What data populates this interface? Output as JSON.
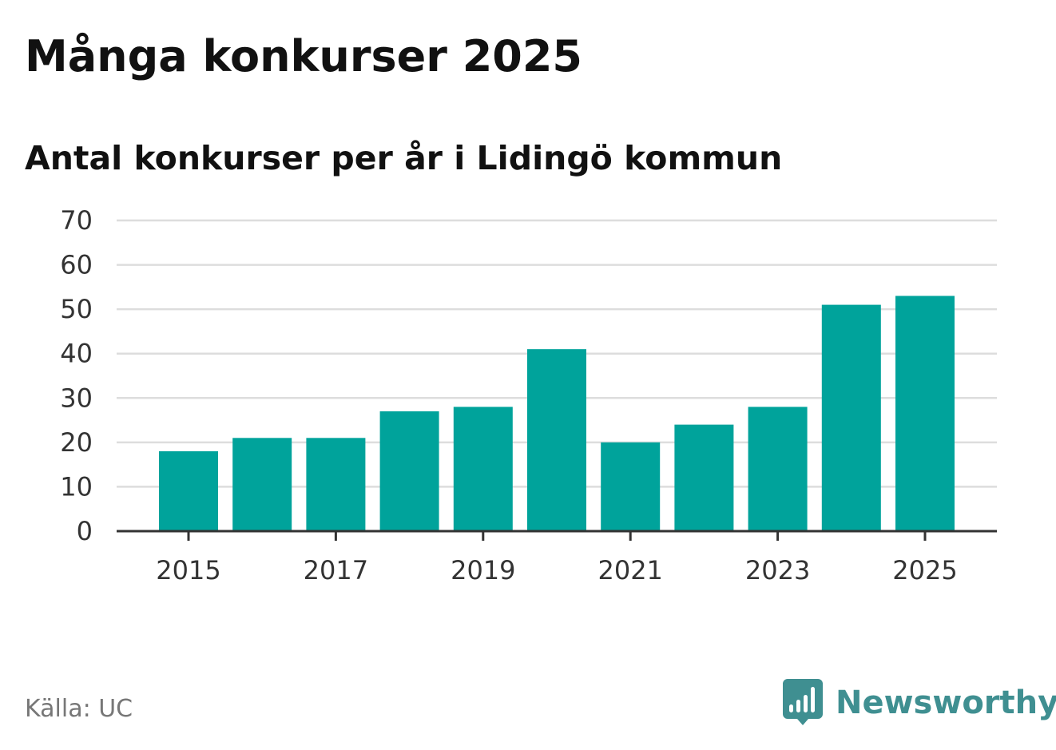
{
  "title": "Många konkurser 2025",
  "subtitle": "Antal konkurser per år i Lidingö kommun",
  "source": "Källa: UC",
  "brand": {
    "name": "Newsworthy",
    "icon": "newsworthy-logo-icon",
    "color": "#3f8f91"
  },
  "colors": {
    "bar": "#00a39b",
    "grid": "#dddddd",
    "axis": "#333333",
    "text": "#111111"
  },
  "chart_data": {
    "type": "bar",
    "title": "Många konkurser 2025",
    "subtitle": "Antal konkurser per år i Lidingö kommun",
    "xlabel": "",
    "ylabel": "",
    "categories": [
      "2015",
      "2016",
      "2017",
      "2018",
      "2019",
      "2020",
      "2021",
      "2022",
      "2023",
      "2024",
      "2025"
    ],
    "values": [
      18,
      21,
      21,
      27,
      28,
      41,
      20,
      24,
      28,
      51,
      53
    ],
    "x_tick_labels": [
      "2015",
      "2017",
      "2019",
      "2021",
      "2023",
      "2025"
    ],
    "y_ticks": [
      0,
      10,
      20,
      30,
      40,
      50,
      60,
      70
    ],
    "ylim": [
      0,
      70
    ],
    "grid": true,
    "legend": "none"
  }
}
